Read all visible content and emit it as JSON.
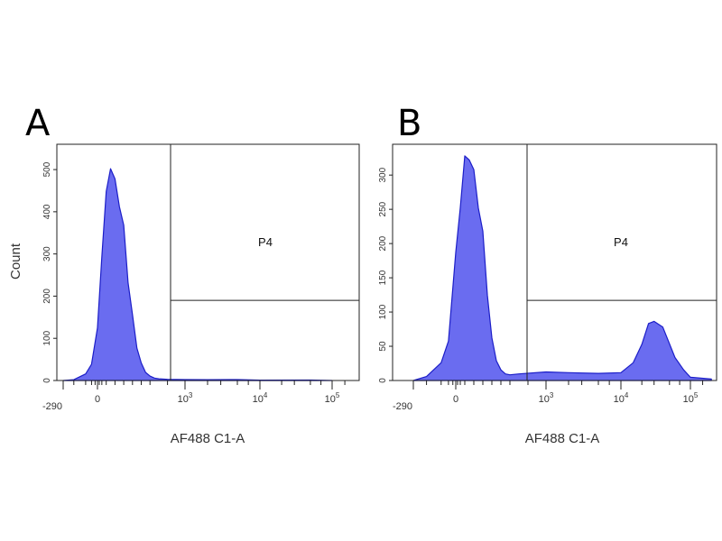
{
  "chart_data": [
    {
      "type": "area",
      "panel_label": "A",
      "xlabel": "AF488 C1-A",
      "ylabel": "Count",
      "x_ticks": [
        "-290",
        "0",
        "10^3",
        "10^4",
        "10^5"
      ],
      "y_ticks": [
        0,
        100,
        200,
        300,
        400,
        500
      ],
      "ylim": [
        0,
        560
      ],
      "gate": {
        "name": "P4",
        "threshold_y": 190
      },
      "series": [
        {
          "x": [
            -290,
            -200,
            -100,
            -50,
            0,
            50,
            100,
            150,
            200,
            250,
            300,
            350,
            400,
            450,
            500,
            550,
            600,
            650,
            700,
            800,
            1000,
            2000,
            5000,
            10000,
            50000,
            100000
          ],
          "values": [
            0,
            2,
            15,
            40,
            120,
            300,
            440,
            510,
            470,
            420,
            360,
            240,
            150,
            80,
            40,
            20,
            10,
            6,
            4,
            3,
            2,
            2,
            2,
            1,
            1,
            0
          ]
        }
      ]
    },
    {
      "type": "area",
      "panel_label": "B",
      "xlabel": "AF488 C1-A",
      "ylabel": "",
      "x_ticks": [
        "-290",
        "0",
        "10^3",
        "10^4",
        "10^5"
      ],
      "y_ticks": [
        0,
        50,
        100,
        150,
        200,
        250,
        300
      ],
      "ylim": [
        0,
        345
      ],
      "gate": {
        "name": "P4",
        "threshold_y": 117
      },
      "series": [
        {
          "x": [
            -290,
            -200,
            -100,
            -50,
            0,
            50,
            100,
            150,
            200,
            250,
            300,
            350,
            400,
            450,
            500,
            550,
            600,
            700,
            1000,
            2000,
            5000,
            10000,
            15000,
            20000,
            25000,
            30000,
            40000,
            60000,
            80000,
            100000,
            200000
          ],
          "values": [
            0,
            6,
            25,
            60,
            180,
            260,
            320,
            330,
            300,
            260,
            210,
            130,
            60,
            30,
            15,
            10,
            8,
            10,
            12,
            12,
            10,
            12,
            25,
            55,
            80,
            90,
            75,
            35,
            15,
            5,
            2
          ]
        }
      ]
    }
  ]
}
